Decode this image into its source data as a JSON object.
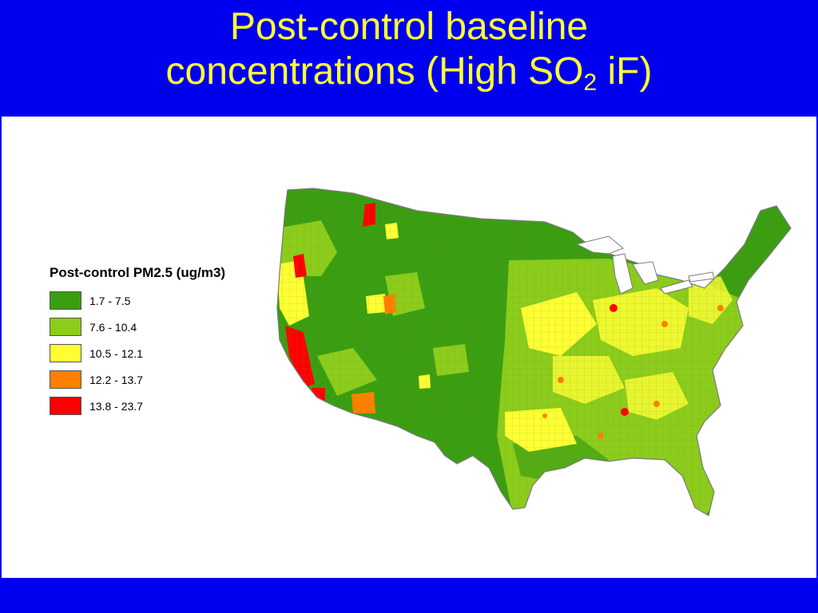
{
  "title": {
    "line1": "Post-control baseline",
    "line2_prefix": "concentrations (High SO",
    "line2_sub": "2",
    "line2_suffix": " iF)"
  },
  "legend": {
    "title": "Post-control PM2.5 (ug/m3)",
    "items": [
      {
        "label": "1.7 - 7.5",
        "color": "#3a9e10"
      },
      {
        "label": "7.6 - 10.4",
        "color": "#8ccc1a"
      },
      {
        "label": "10.5 - 12.1",
        "color": "#ffff33"
      },
      {
        "label": "12.2 - 13.7",
        "color": "#ff8000"
      },
      {
        "label": "13.8 - 23.7",
        "color": "#ff0000"
      }
    ]
  },
  "colors": {
    "background": "#0000f0",
    "title_text": "#ffff33",
    "map_border": "#7a7a7a"
  }
}
